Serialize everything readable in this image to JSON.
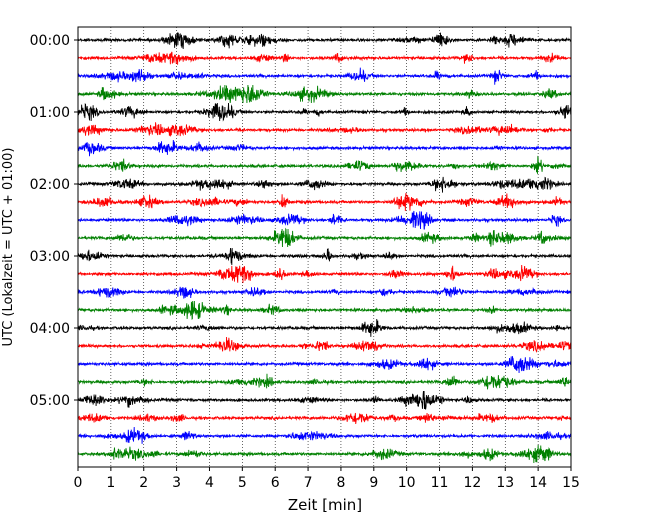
{
  "chart_data": {
    "type": "line",
    "xlabel": "Zeit  [min]",
    "ylabel": "UTC (Lokalzeit = UTC + 01:00)",
    "xlim": [
      0,
      15
    ],
    "x_ticks": [
      "0",
      "1",
      "2",
      "3",
      "4",
      "5",
      "6",
      "7",
      "8",
      "9",
      "10",
      "11",
      "12",
      "13",
      "14",
      "15"
    ],
    "y_tick_labels": [
      "00:00",
      "01:00",
      "02:00",
      "03:00",
      "04:00",
      "05:00"
    ],
    "grid": "vertical dotted",
    "trace_colors": [
      "#000000",
      "#ff0000",
      "#0000ff",
      "#008000"
    ],
    "traces_per_hour": 4,
    "trace_minutes": 15,
    "start_time": "00:00",
    "end_time": "05:45"
  }
}
